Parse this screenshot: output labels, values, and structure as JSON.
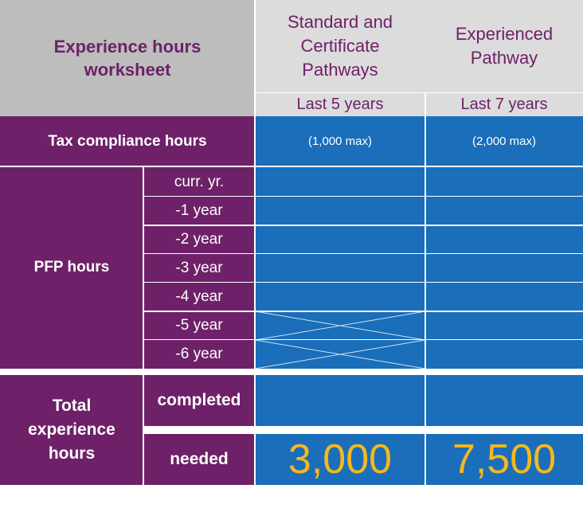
{
  "header": {
    "title": "Experience hours worksheet",
    "col1_title": "Standard and Certificate Pathways",
    "col2_title": "Experienced Pathway",
    "col1_period": "Last 5 years",
    "col2_period": "Last 7 years"
  },
  "tax": {
    "label": "Tax compliance hours",
    "col1_max": "(1,000 max)",
    "col2_max": "(2,000 max)"
  },
  "pfp": {
    "label": "PFP hours",
    "years": [
      "curr. yr.",
      "-1 year",
      "-2 year",
      "-3 year",
      "-4 year",
      "-5 year",
      "-6 year"
    ]
  },
  "total": {
    "label": "Total experience hours",
    "completed": "completed",
    "needed": "needed",
    "col1_needed": "3,000",
    "col2_needed": "7,500"
  },
  "colors": {
    "purple": "#6e2168",
    "blue": "#1a6eba",
    "gold": "#f4b81f",
    "gray": "#bdbdbd",
    "light_gray": "#dcdcdc"
  }
}
